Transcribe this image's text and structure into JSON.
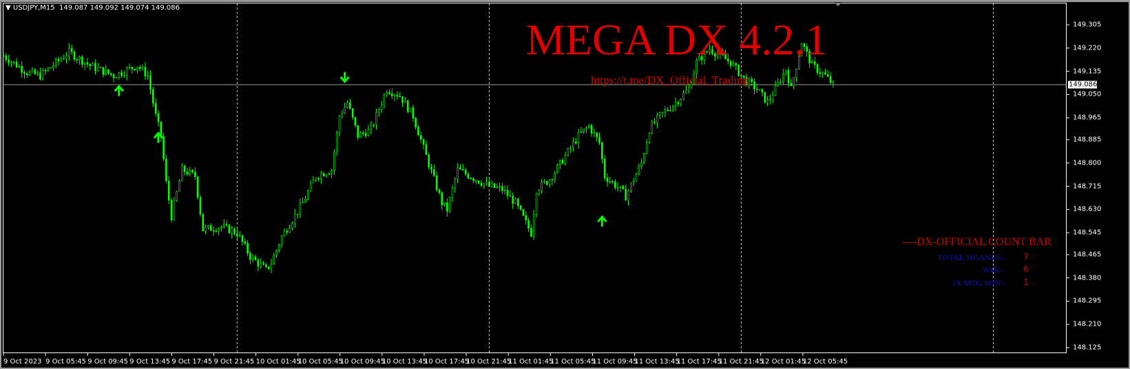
{
  "header": {
    "symbol": "USDJPY,M15",
    "ohlc": "149.087 149.092 149.074 149.086"
  },
  "overlay": {
    "title": "MEGA DX 4.2.1",
    "url": "https://t.me/DX_Official_Trading"
  },
  "count_bar": {
    "title": "----DX-OFFICIAL COUNT BAR",
    "rows": [
      {
        "label": "TOTAL SIGANLS--",
        "value": "7"
      },
      {
        "label": "WIN--",
        "value": "6"
      },
      {
        "label": "1X MTG WIN--",
        "value": "1"
      }
    ]
  },
  "colors": {
    "bull": "#00ff00",
    "bear": "#00ff00",
    "background": "#000000",
    "text_red": "#e00000",
    "text_blue": "#1010c0"
  },
  "chart_data": {
    "type": "candlestick",
    "symbol": "USDJPY",
    "timeframe": "M15",
    "current_price": "149.086",
    "ylim": [
      148.125,
      149.305
    ],
    "y_ticks": [
      "149.305",
      "149.220",
      "149.135",
      "149.050",
      "148.965",
      "148.885",
      "148.800",
      "148.715",
      "148.630",
      "148.545",
      "148.465",
      "148.380",
      "148.295",
      "148.210",
      "148.125"
    ],
    "x_ticks": [
      "9 Oct 2023",
      "9 Oct 05:45",
      "9 Oct 09:45",
      "9 Oct 13:45",
      "9 Oct 17:45",
      "9 Oct 21:45",
      "10 Oct 01:45",
      "10 Oct 05:45",
      "10 Oct 09:45",
      "10 Oct 13:45",
      "10 Oct 17:45",
      "10 Oct 21:45",
      "11 Oct 01:45",
      "11 Oct 05:45",
      "11 Oct 09:45",
      "11 Oct 13:45",
      "11 Oct 17:45",
      "11 Oct 21:45",
      "12 Oct 01:45",
      "12 Oct 05:45"
    ],
    "day_separators": [
      "10 Oct 00:00",
      "11 Oct 00:00",
      "12 Oct 00:00",
      "13 Oct 00:00"
    ],
    "price_path": [
      [
        "9 01:45",
        149.192
      ],
      [
        "9 04:00",
        149.131
      ],
      [
        "9 05:15",
        149.119
      ],
      [
        "9 08:00",
        149.205
      ],
      [
        "9 10:00",
        149.156
      ],
      [
        "9 12:15",
        149.119
      ],
      [
        "9 14:30",
        149.156
      ],
      [
        "9 15:30",
        149.119
      ],
      [
        "9 16:15",
        148.972
      ],
      [
        "9 16:45",
        148.899
      ],
      [
        "9 17:15",
        148.727
      ],
      [
        "9 17:45",
        148.605
      ],
      [
        "9 18:45",
        148.776
      ],
      [
        "9 20:00",
        148.752
      ],
      [
        "9 20:45",
        148.556
      ],
      [
        "9 22:30",
        148.568
      ],
      [
        "10 00:00",
        148.544
      ],
      [
        "10 01:15",
        148.458
      ],
      [
        "10 02:45",
        148.409
      ],
      [
        "10 03:15",
        148.434
      ],
      [
        "10 04:15",
        148.531
      ],
      [
        "10 06:15",
        148.654
      ],
      [
        "10 07:30",
        148.752
      ],
      [
        "10 09:00",
        148.776
      ],
      [
        "10 09:45",
        148.972
      ],
      [
        "10 10:30",
        149.021
      ],
      [
        "10 11:30",
        148.899
      ],
      [
        "10 12:45",
        148.923
      ],
      [
        "10 14:15",
        149.07
      ],
      [
        "10 15:30",
        149.046
      ],
      [
        "10 16:45",
        148.972
      ],
      [
        "10 18:00",
        148.825
      ],
      [
        "10 19:30",
        148.654
      ],
      [
        "10 20:00",
        148.629
      ],
      [
        "10 21:00",
        148.776
      ],
      [
        "10 22:45",
        148.74
      ],
      [
        "11 00:00",
        148.715
      ],
      [
        "11 01:15",
        148.703
      ],
      [
        "11 02:30",
        148.654
      ],
      [
        "11 04:00",
        148.544
      ],
      [
        "11 04:30",
        148.703
      ],
      [
        "11 05:45",
        148.74
      ],
      [
        "11 07:15",
        148.825
      ],
      [
        "11 08:30",
        148.899
      ],
      [
        "11 09:30",
        148.935
      ],
      [
        "11 10:30",
        148.874
      ],
      [
        "11 11:00",
        148.752
      ],
      [
        "11 12:30",
        148.703
      ],
      [
        "11 13:00",
        148.678
      ],
      [
        "11 14:30",
        148.801
      ],
      [
        "11 15:15",
        148.923
      ],
      [
        "11 16:15",
        148.972
      ],
      [
        "11 17:45",
        149.021
      ],
      [
        "11 19:00",
        149.07
      ],
      [
        "11 19:45",
        149.168
      ],
      [
        "11 21:00",
        149.217
      ],
      [
        "11 22:00",
        149.192
      ],
      [
        "11 23:00",
        149.168
      ],
      [
        "12 00:15",
        149.107
      ],
      [
        "12 01:30",
        149.07
      ],
      [
        "12 02:30",
        149.021
      ],
      [
        "12 03:15",
        149.07
      ],
      [
        "12 04:15",
        149.143
      ],
      [
        "12 04:45",
        149.07
      ],
      [
        "12 05:45",
        149.241
      ],
      [
        "12 06:45",
        149.156
      ],
      [
        "12 08:00",
        149.119
      ],
      [
        "12 08:45",
        149.086
      ]
    ],
    "signals": [
      {
        "dir": "up",
        "time": "9 12:45",
        "price": 149.07
      },
      {
        "dir": "up",
        "time": "9 16:30",
        "price": 148.899
      },
      {
        "dir": "down",
        "time": "10 10:15",
        "price": 149.107
      },
      {
        "dir": "up",
        "time": "11 10:45",
        "price": 148.593
      }
    ]
  }
}
